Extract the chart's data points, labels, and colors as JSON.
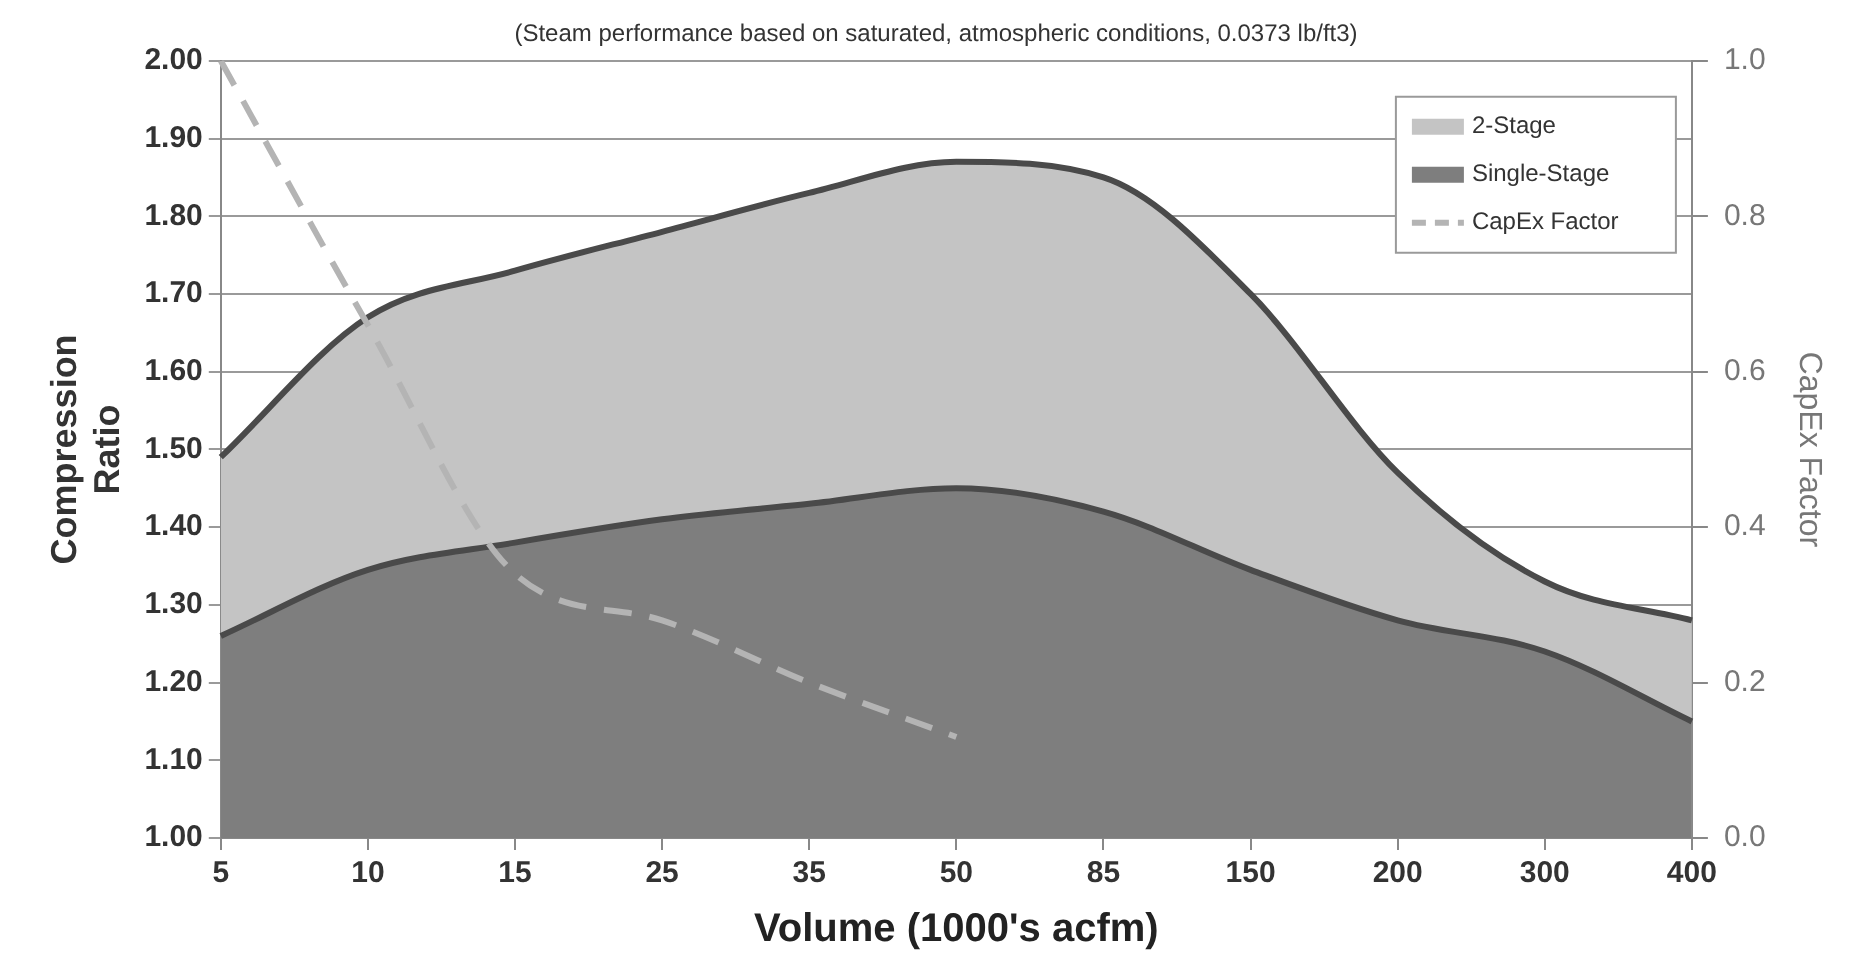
{
  "chart_data": {
    "type": "area",
    "subtitle": "(Steam performance based on saturated, atmospheric conditions, 0.0373 lb/ft3)",
    "xlabel": "Volume (1000's acfm)",
    "ylabel": "Compression Ratio",
    "y2label": "CapEx Factor",
    "categories": [
      "5",
      "10",
      "15",
      "25",
      "35",
      "50",
      "85",
      "150",
      "200",
      "300",
      "400"
    ],
    "series": [
      {
        "name": "2-Stage",
        "color": "#c4c4c4",
        "values": [
          1.49,
          1.67,
          1.73,
          1.78,
          1.83,
          1.87,
          1.85,
          1.7,
          1.47,
          1.33,
          1.28
        ]
      },
      {
        "name": "Single-Stage",
        "color": "#7e7e7e",
        "values": [
          1.26,
          1.345,
          1.38,
          1.41,
          1.43,
          1.45,
          1.42,
          1.345,
          1.28,
          1.24,
          1.15
        ]
      },
      {
        "name": "CapEx Factor",
        "type": "line",
        "axis": "y2",
        "color": "#b4b4b4",
        "line_style": "dashed",
        "values": [
          1.0,
          0.66,
          0.34,
          0.28,
          0.2,
          0.13,
          null,
          null,
          null,
          null,
          null
        ]
      }
    ],
    "ylim": [
      1.0,
      2.0
    ],
    "yticks": [
      {
        "value": 1.0,
        "label": "1.00"
      },
      {
        "value": 1.1,
        "label": "1.10"
      },
      {
        "value": 1.2,
        "label": "1.20"
      },
      {
        "value": 1.3,
        "label": "1.30"
      },
      {
        "value": 1.4,
        "label": "1.40"
      },
      {
        "value": 1.5,
        "label": "1.50"
      },
      {
        "value": 1.6,
        "label": "1.60"
      },
      {
        "value": 1.7,
        "label": "1.70"
      },
      {
        "value": 1.8,
        "label": "1.80"
      },
      {
        "value": 1.9,
        "label": "1.90"
      },
      {
        "value": 2.0,
        "label": "2.00"
      }
    ],
    "y2lim": [
      0,
      1
    ],
    "y2ticks": [
      {
        "value": 0,
        "label": "0.0"
      },
      0.2,
      0.4,
      0.6,
      0.8,
      {
        "value": 1,
        "label": "1.0"
      }
    ],
    "grid": "y",
    "legend": "top right"
  }
}
